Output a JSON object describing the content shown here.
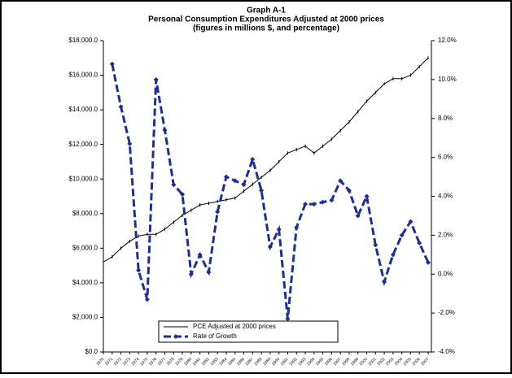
{
  "chart_data": {
    "type": "line",
    "title": "Graph A-1",
    "subtitle": "Personal Consumption Expenditures Adjusted at 2000 prices",
    "note": "(figures in millions $, and percentage)",
    "categories": [
      "1970",
      "1971",
      "1972",
      "1973",
      "1974",
      "1975",
      "1976",
      "1977",
      "1978",
      "1979",
      "1980",
      "1981",
      "1982",
      "1983",
      "1984",
      "1985",
      "1986",
      "1987",
      "1988",
      "1989",
      "1990",
      "1991",
      "1992",
      "1993",
      "1994",
      "1995",
      "1996",
      "1997",
      "1998",
      "1999",
      "2000",
      "2001",
      "2002",
      "2003",
      "2004",
      "2005",
      "2006",
      "2007"
    ],
    "series": [
      {
        "name": "PCE Adjusted at 2000 prices",
        "color": "#000000",
        "axis": "y",
        "values": [
          5200,
          5500,
          6000,
          6400,
          6700,
          6800,
          6800,
          7100,
          7500,
          7900,
          8200,
          8500,
          8600,
          8700,
          8800,
          8900,
          9300,
          9700,
          10100,
          10500,
          11000,
          11500,
          11700,
          11900,
          11500,
          11900,
          12300,
          12800,
          13300,
          13900,
          14500,
          15000,
          15500,
          15800,
          15800,
          16000,
          16500,
          17000
        ]
      },
      {
        "name": "Rate of Growth",
        "color": "#1f2f8f",
        "axis": "y2",
        "values": [
          null,
          10.8,
          8.6,
          6.7,
          0.2,
          -1.3,
          10.0,
          7.4,
          4.6,
          4.1,
          0.0,
          1.0,
          0.1,
          3.2,
          5.0,
          4.8,
          4.6,
          5.9,
          4.3,
          1.4,
          2.3,
          -2.3,
          2.4,
          3.6,
          3.6,
          3.7,
          3.8,
          4.8,
          4.3,
          3.0,
          4.0,
          1.5,
          -0.4,
          1.0,
          2.0,
          2.7,
          1.6,
          0.6
        ]
      }
    ],
    "ylim": [
      0,
      18000
    ],
    "yticks": [
      {
        "value": 0,
        "label": "$0.0"
      },
      {
        "value": 2000,
        "label": "$2,000.0"
      },
      {
        "value": 4000,
        "label": "$4,000.0"
      },
      {
        "value": 6000,
        "label": "$6,000.0"
      },
      {
        "value": 8000,
        "label": "$8,000.0"
      },
      {
        "value": 10000,
        "label": "$10,000.0"
      },
      {
        "value": 12000,
        "label": "$12,000.0"
      },
      {
        "value": 14000,
        "label": "$14,000.0"
      },
      {
        "value": 16000,
        "label": "$16,000.0"
      },
      {
        "value": 18000,
        "label": "$18,000.0"
      }
    ],
    "y2lim": [
      -4,
      12
    ],
    "y2ticks": [
      {
        "value": -4,
        "label": "-4.0%"
      },
      {
        "value": -2,
        "label": "-2.0%"
      },
      {
        "value": 0,
        "label": "0.0%"
      },
      {
        "value": 2,
        "label": "2.0%"
      },
      {
        "value": 4,
        "label": "4.0%"
      },
      {
        "value": 6,
        "label": "6.0%"
      },
      {
        "value": 8,
        "label": "8.0%"
      },
      {
        "value": 10,
        "label": "10.0%"
      },
      {
        "value": 12,
        "label": "12.0%"
      }
    ],
    "legend": "bottom"
  }
}
